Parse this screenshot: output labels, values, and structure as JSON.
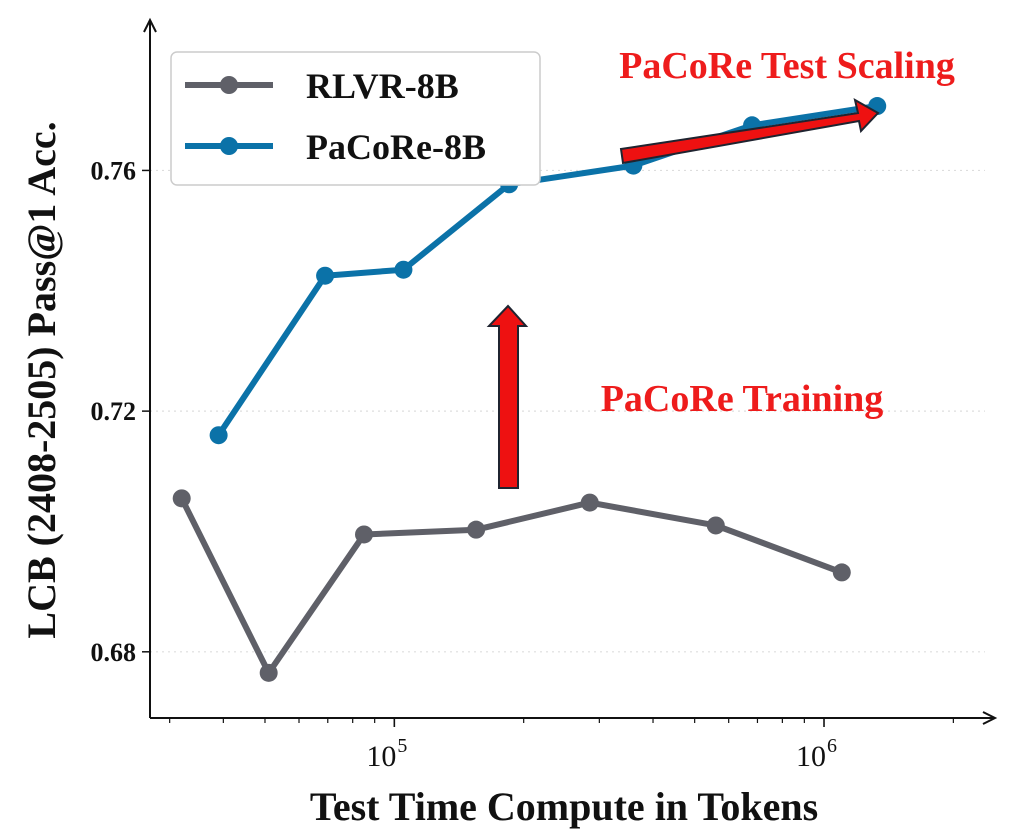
{
  "chart_data": {
    "type": "line",
    "xscale": "log",
    "xlabel": "Test Time Compute in Tokens",
    "ylabel": "LCB (2408-2505) Pass@1 Acc.",
    "xlim": [
      27000,
      2500000
    ],
    "ylim": [
      0.669,
      0.785
    ],
    "yticks": [
      0.68,
      0.72,
      0.76
    ],
    "ytick_labels": [
      "0.68",
      "0.72",
      "0.76"
    ],
    "xticks": [
      100000,
      1000000
    ],
    "xtick_labels": [
      {
        "base": "10",
        "exp": "5"
      },
      {
        "base": "10",
        "exp": "6"
      }
    ],
    "grid": {
      "y": true,
      "style": "dotted"
    },
    "legend": "top-left",
    "series": [
      {
        "name": "RLVR-8B",
        "color": "#5f6068",
        "x": [
          32000,
          51000,
          85000,
          155000,
          285000,
          560000,
          1100000
        ],
        "y": [
          0.7055,
          0.6765,
          0.6995,
          0.7003,
          0.7048,
          0.701,
          0.6932
        ]
      },
      {
        "name": "PaCoRe-8B",
        "color": "#0b72a8",
        "x": [
          39000,
          69000,
          105000,
          185000,
          360000,
          680000,
          1330000
        ],
        "y": [
          0.716,
          0.7425,
          0.7435,
          0.7577,
          0.7608,
          0.7675,
          0.7707
        ]
      }
    ],
    "annotations": [
      {
        "text": "PaCoRe Test Scaling",
        "color": "#ee1c1c"
      },
      {
        "text": "PaCoRe Training",
        "color": "#ee1c1c"
      }
    ]
  }
}
